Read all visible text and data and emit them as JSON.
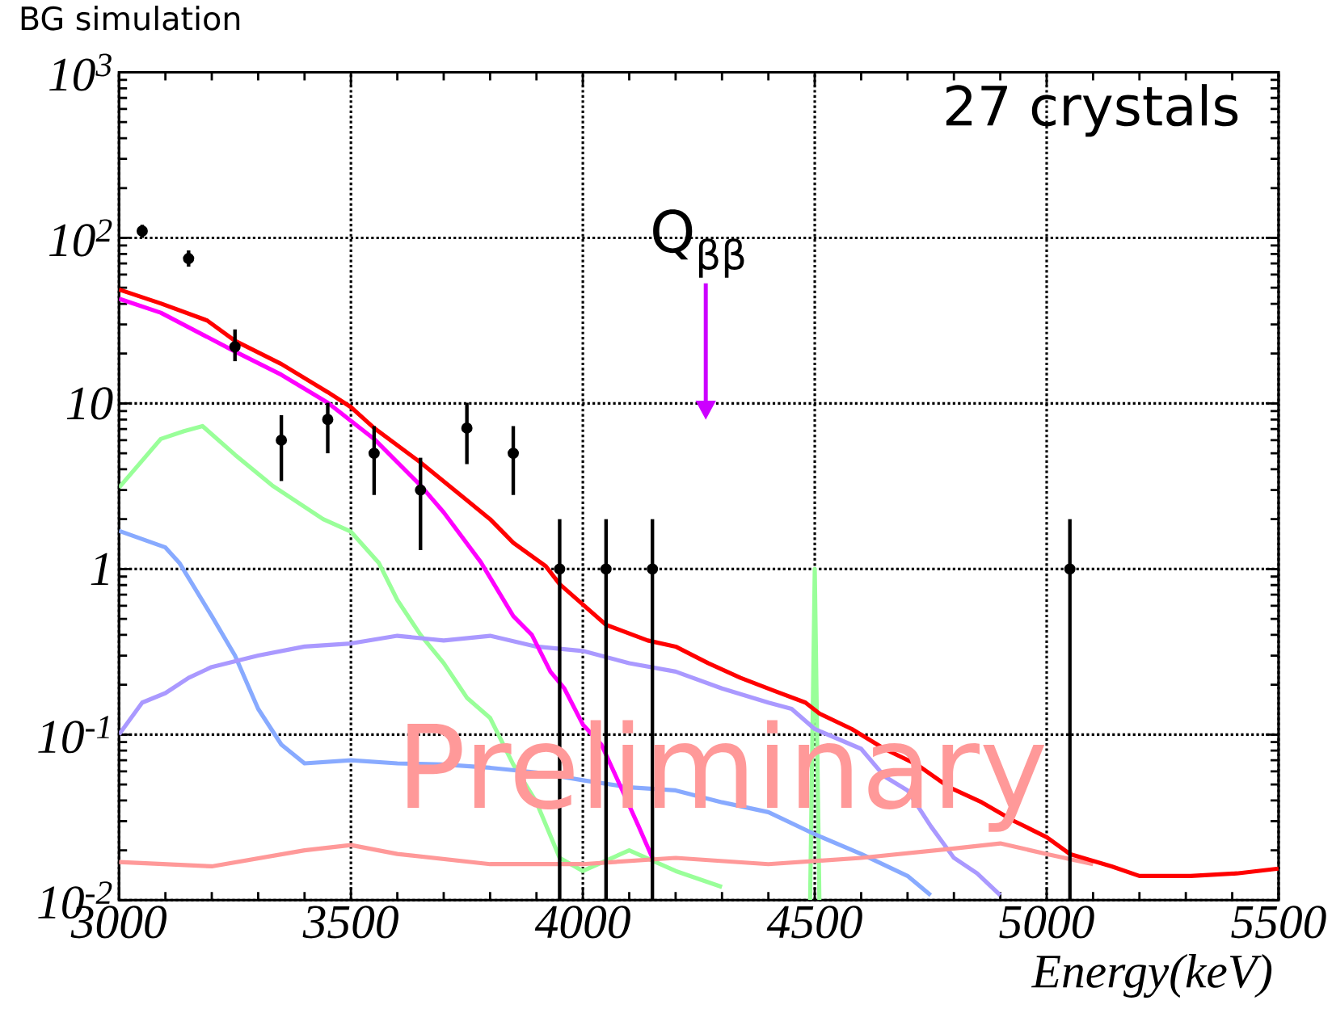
{
  "chart_data": {
    "type": "line",
    "title": "BG simulation",
    "xlabel": "Energy(keV)",
    "xlim": [
      3000,
      5500
    ],
    "xticks": [
      3000,
      3500,
      4000,
      4500,
      5000,
      5500
    ],
    "ylim": [
      0.01,
      1000
    ],
    "yticks": [
      {
        "value": 0.01,
        "label": "10$^{-2}$"
      },
      {
        "value": 0.1,
        "label": "10$^{-1}$"
      },
      1,
      10,
      {
        "value": 100,
        "label": "10$^{2}$"
      },
      {
        "value": 1000,
        "label": "10$^{3}$"
      }
    ],
    "log": "y",
    "grid": true,
    "annotations": [
      "27 crystals",
      "Q$_{ββ}$",
      "Preliminary"
    ],
    "series": [
      {
        "color": "#99ff99",
        "x": [
          3000,
          3090,
          3140,
          3180,
          3250,
          3330,
          3440,
          3500,
          3560,
          3600,
          3650,
          3700,
          3750,
          3800,
          3850,
          3900,
          3950,
          4000,
          4100,
          4200,
          4300,
          4400,
          4490,
          4500,
          4510
        ],
        "values": [
          3.1,
          6.1,
          6.8,
          7.3,
          4.9,
          3.2,
          2.0,
          1.68,
          1.09,
          0.65,
          0.4,
          0.27,
          0.167,
          0.126,
          0.066,
          0.039,
          0.018,
          0.015,
          0.02,
          0.015,
          0.012,
          null,
          0.01,
          1.0,
          0.01
        ]
      },
      {
        "color": "#88aaff",
        "x": [
          3000,
          3100,
          3130,
          3200,
          3250,
          3300,
          3350,
          3400,
          3500,
          3600,
          3700,
          3800,
          3900,
          4000,
          4100,
          4200,
          4300,
          4400,
          4500,
          4600,
          4700,
          4750
        ],
        "values": [
          1.7,
          1.35,
          1.09,
          0.52,
          0.3,
          0.143,
          0.087,
          0.067,
          0.07,
          0.067,
          0.066,
          0.063,
          0.059,
          0.053,
          0.048,
          0.046,
          0.039,
          0.034,
          0.025,
          0.019,
          0.014,
          0.0107
        ]
      },
      {
        "color": "#aa99ff",
        "x": [
          3000,
          3050,
          3100,
          3150,
          3200,
          3300,
          3400,
          3500,
          3600,
          3700,
          3800,
          3900,
          4000,
          4100,
          4200,
          4300,
          4400,
          4450,
          4500,
          4600,
          4650,
          4700,
          4750,
          4800,
          4850,
          4900
        ],
        "values": [
          0.1,
          0.156,
          0.178,
          0.22,
          0.256,
          0.3,
          0.34,
          0.355,
          0.395,
          0.37,
          0.395,
          0.34,
          0.32,
          0.27,
          0.24,
          0.19,
          0.156,
          0.143,
          0.108,
          0.082,
          0.056,
          0.046,
          0.028,
          0.018,
          0.0145,
          0.0107
        ]
      },
      {
        "color": "#ff9999",
        "x": [
          3000,
          3200,
          3400,
          3500,
          3600,
          3800,
          4000,
          4200,
          4400,
          4600,
          4800,
          4900,
          5000,
          5100
        ],
        "values": [
          0.017,
          0.016,
          0.02,
          0.0215,
          0.019,
          0.0165,
          0.0165,
          0.018,
          0.0165,
          0.018,
          0.0205,
          0.022,
          0.019,
          0.0165
        ]
      },
      {
        "color": "#ff00ff",
        "x": [
          3000,
          3090,
          3250,
          3350,
          3450,
          3550,
          3650,
          3700,
          3780,
          3850,
          3890,
          3930,
          3960,
          4000,
          4040,
          4090,
          4120,
          4150
        ],
        "values": [
          42.9,
          35.3,
          20.6,
          14.9,
          10.1,
          6.1,
          3.2,
          2.2,
          1.1,
          0.52,
          0.4,
          0.24,
          0.19,
          0.115,
          0.087,
          0.043,
          0.028,
          0.018
        ]
      },
      {
        "color": "#ff0000",
        "x": [
          3000,
          3090,
          3190,
          3250,
          3350,
          3450,
          3500,
          3550,
          3650,
          3750,
          3800,
          3850,
          3920,
          3950,
          4050,
          4140,
          4200,
          4270,
          4340,
          4410,
          4480,
          4510,
          4580,
          4650,
          4720,
          4790,
          4860,
          4930,
          5000,
          5050,
          5140,
          5200,
          5310,
          5410,
          5500
        ],
        "values": [
          48.8,
          40.2,
          31.7,
          23.9,
          17.3,
          11.7,
          9.5,
          7.1,
          4.4,
          2.6,
          2.0,
          1.44,
          1.04,
          0.81,
          0.46,
          0.37,
          0.34,
          0.27,
          0.22,
          0.185,
          0.156,
          0.134,
          0.108,
          0.082,
          0.066,
          0.048,
          0.039,
          0.03,
          0.024,
          0.019,
          0.016,
          0.014,
          0.014,
          0.0145,
          0.0155
        ]
      },
      {
        "type": "scatter",
        "marker": "circle",
        "color": "#000000",
        "x": [
          3050,
          3150,
          3250,
          3350,
          3450,
          3550,
          3650,
          3750,
          3850,
          3950,
          4050,
          4150,
          5050
        ],
        "values": [
          110,
          75,
          22,
          6.0,
          8.0,
          5.0,
          3.0,
          7.1,
          5.0,
          1,
          1,
          1,
          1
        ],
        "errors": [
          [
            100,
            120
          ],
          [
            67,
            84
          ],
          [
            18,
            28
          ],
          [
            3.4,
            8.5
          ],
          [
            5.0,
            10.1
          ],
          [
            2.8,
            7.3
          ],
          [
            1.3,
            4.7
          ],
          [
            4.3,
            10.1
          ],
          [
            2.8,
            7.3
          ],
          [
            0.01,
            2
          ],
          [
            0.01,
            2
          ],
          [
            0.01,
            2
          ],
          [
            0.01,
            2
          ]
        ]
      }
    ]
  }
}
